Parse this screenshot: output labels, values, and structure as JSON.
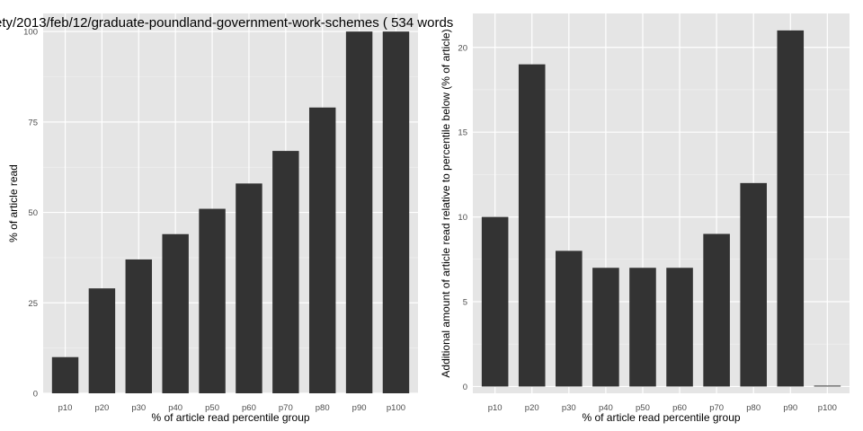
{
  "title": "ety/2013/feb/12/graduate-poundland-government-work-schemes ( 534 words",
  "chart_data": [
    {
      "type": "bar",
      "categories": [
        "p10",
        "p20",
        "p30",
        "p40",
        "p50",
        "p60",
        "p70",
        "p80",
        "p90",
        "p100"
      ],
      "values": [
        10,
        29,
        37,
        44,
        51,
        58,
        67,
        79,
        100,
        100
      ],
      "xlabel": "% of article read percentile group",
      "ylabel": "% of article read",
      "ylim": [
        0,
        105
      ],
      "yticks": [
        0,
        25,
        50,
        75,
        100
      ],
      "grid": true,
      "background": "#e5e5e5",
      "bar_color": "#333333"
    },
    {
      "type": "bar",
      "categories": [
        "p10",
        "p20",
        "p30",
        "p40",
        "p50",
        "p60",
        "p70",
        "p80",
        "p90",
        "p100"
      ],
      "values": [
        10,
        19,
        8,
        7,
        7,
        7,
        9,
        12,
        21,
        0
      ],
      "xlabel": "% of article read percentile group",
      "ylabel": "Additional amount of article read relative to percentile below (% of article)",
      "ylim": [
        -0.4,
        22
      ],
      "yticks": [
        0,
        5,
        10,
        15,
        20
      ],
      "grid": true,
      "background": "#e5e5e5",
      "bar_color": "#333333"
    }
  ]
}
